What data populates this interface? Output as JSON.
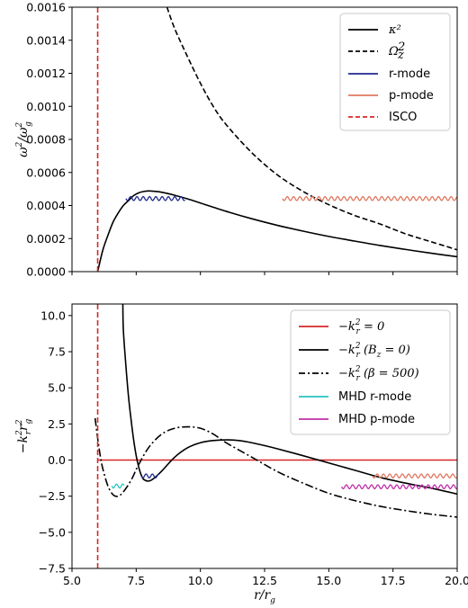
{
  "chart_data": [
    {
      "type": "line",
      "title": "",
      "xlabel": "",
      "ylabel": "ω²/ω_g²",
      "xlim": [
        5.0,
        20.0
      ],
      "ylim": [
        0.0,
        0.0016
      ],
      "yticks": [
        "0.0000",
        "0.0002",
        "0.0004",
        "0.0006",
        "0.0008",
        "0.0010",
        "0.0012",
        "0.0014",
        "0.0016"
      ],
      "yticks_values": [
        0.0,
        0.0002,
        0.0004,
        0.0006,
        0.0008,
        0.001,
        0.0012,
        0.0014,
        0.0016
      ],
      "xticks_values": [
        5.0,
        7.5,
        10.0,
        12.5,
        15.0,
        17.5,
        20.0
      ],
      "legend_position": "top-right",
      "series": [
        {
          "name": "κ²",
          "style": "solid",
          "color": "#000000",
          "x": [
            6.0,
            6.2,
            6.4,
            6.6,
            6.8,
            7.0,
            7.2,
            7.4,
            7.6,
            7.8,
            8.0,
            8.2,
            8.5,
            9.0,
            9.5,
            10.0,
            11.0,
            12.0,
            13.0,
            14.0,
            15.0,
            16.0,
            17.0,
            18.0,
            19.0,
            20.0
          ],
          "y": [
            0.0,
            0.00013,
            0.00022,
            0.0003,
            0.000355,
            0.0004,
            0.00043,
            0.00046,
            0.000477,
            0.000485,
            0.000488,
            0.000486,
            0.00048,
            0.000462,
            0.00044,
            0.000415,
            0.000365,
            0.00032,
            0.00028,
            0.000245,
            0.000213,
            0.000185,
            0.000158,
            0.000134,
            0.000111,
            9e-05
          ]
        },
        {
          "name": "Ω_z²",
          "style": "dashed",
          "color": "#000000",
          "x": [
            8.7,
            9.0,
            9.5,
            10.0,
            10.5,
            11.0,
            12.0,
            13.0,
            14.0,
            15.0,
            16.0,
            17.0,
            18.0,
            19.0,
            20.0
          ],
          "y": [
            0.0016,
            0.00147,
            0.0013,
            0.00114,
            0.001,
            0.00089,
            0.00072,
            0.000585,
            0.000485,
            0.000405,
            0.00034,
            0.000288,
            0.000228,
            0.00018,
            0.000132
          ]
        },
        {
          "name": "r-mode",
          "style": "wavy",
          "color": "#1f2a8c",
          "x": [
            7.1,
            9.4
          ],
          "y": [
            0.000442,
            0.000442
          ]
        },
        {
          "name": "p-mode",
          "style": "wavy",
          "color": "#e07860",
          "x": [
            13.2,
            20.0
          ],
          "y": [
            0.000442,
            0.000442
          ]
        },
        {
          "name": "ISCO",
          "style": "dashed-vertical",
          "color": "#d62728",
          "x": [
            6.0,
            6.0
          ],
          "y": [
            0.0,
            0.0016
          ]
        }
      ]
    },
    {
      "type": "line",
      "title": "",
      "xlabel": "r/r_g",
      "ylabel": "−k_r² r_g²",
      "xlim": [
        5.0,
        20.0
      ],
      "ylim": [
        -7.5,
        10.8
      ],
      "yticks": [
        "−7.5",
        "−5.0",
        "−2.5",
        "0.0",
        "2.5",
        "5.0",
        "7.5",
        "10.0"
      ],
      "yticks_values": [
        -7.5,
        -5.0,
        -2.5,
        0.0,
        2.5,
        5.0,
        7.5,
        10.0
      ],
      "xticks": [
        "5.0",
        "7.5",
        "10.0",
        "12.5",
        "15.0",
        "17.5",
        "20.0"
      ],
      "xticks_values": [
        5.0,
        7.5,
        10.0,
        12.5,
        15.0,
        17.5,
        20.0
      ],
      "legend_position": "top-right",
      "series": [
        {
          "name": "−k_r² = 0",
          "style": "solid",
          "color": "#d62728",
          "x": [
            6.0,
            20.0
          ],
          "y": [
            0.0,
            0.0
          ]
        },
        {
          "name": "−k_r² (B_z = 0)",
          "style": "solid",
          "color": "#000000",
          "x": [
            6.98,
            7.0,
            7.1,
            7.2,
            7.3,
            7.4,
            7.5,
            7.6,
            7.7,
            7.8,
            8.0,
            8.2,
            8.5,
            9.0,
            9.5,
            10.0,
            10.5,
            11.0,
            11.5,
            12.0,
            12.5,
            13.0,
            14.0,
            15.0,
            16.0,
            17.0,
            18.0,
            19.0,
            20.0
          ],
          "y": [
            10.8,
            9.0,
            6.5,
            4.4,
            2.8,
            1.4,
            0.3,
            -0.5,
            -1.05,
            -1.35,
            -1.45,
            -1.25,
            -0.75,
            0.2,
            0.85,
            1.2,
            1.35,
            1.4,
            1.35,
            1.2,
            1.0,
            0.78,
            0.3,
            -0.2,
            -0.7,
            -1.2,
            -1.6,
            -1.95,
            -2.35
          ]
        },
        {
          "name": "−k_r² (β = 500)",
          "style": "dashdot",
          "color": "#000000",
          "x": [
            5.9,
            6.0,
            6.1,
            6.2,
            6.4,
            6.6,
            6.8,
            7.0,
            7.3,
            7.6,
            8.0,
            8.5,
            9.0,
            9.5,
            10.0,
            10.5,
            11.0,
            12.0,
            13.0,
            14.0,
            15.0,
            16.0,
            17.0,
            18.0,
            19.0,
            20.0
          ],
          "y": [
            2.9,
            1.5,
            0.3,
            -0.6,
            -1.8,
            -2.4,
            -2.5,
            -2.2,
            -1.4,
            -0.3,
            0.9,
            1.8,
            2.2,
            2.3,
            2.2,
            1.8,
            1.2,
            0.2,
            -0.8,
            -1.6,
            -2.3,
            -2.8,
            -3.2,
            -3.5,
            -3.75,
            -3.95
          ]
        },
        {
          "name": "MHD r-mode",
          "style": "wavy",
          "color": "#27c4c0",
          "x": [
            6.55,
            7.05
          ],
          "y": [
            -1.8,
            -1.8
          ]
        },
        {
          "name": "MHD p-mode",
          "style": "wavy",
          "color": "#c030a8",
          "x": [
            15.5,
            20.0
          ],
          "y": [
            -1.85,
            -1.85
          ]
        },
        {
          "name": "",
          "style": "wavy",
          "color": "#1f2a8c",
          "x": [
            7.7,
            8.4
          ],
          "y": [
            -1.1,
            -1.1
          ]
        },
        {
          "name": "",
          "style": "wavy",
          "color": "#e07860",
          "x": [
            16.7,
            20.0
          ],
          "y": [
            -1.1,
            -1.1
          ]
        },
        {
          "name": "",
          "style": "dashed-vertical",
          "color": "#d62728",
          "x": [
            6.0,
            6.0
          ],
          "y": [
            -7.5,
            10.8
          ]
        }
      ]
    }
  ],
  "legend_labels": {
    "top": [
      "κ²",
      "Ω_z²",
      "r-mode",
      "p-mode",
      "ISCO"
    ],
    "bottom": [
      "−k_r² = 0",
      "−k_r² (B_z = 0)",
      "−k_r² (β = 500)",
      "MHD r-mode",
      "MHD p-mode"
    ]
  }
}
